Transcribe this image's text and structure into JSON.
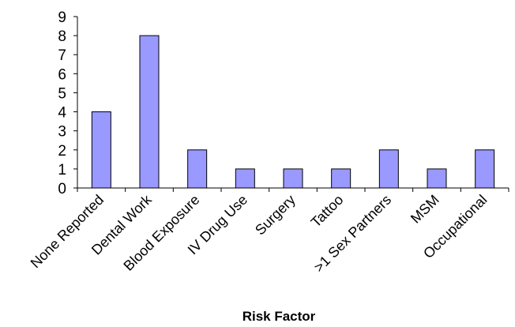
{
  "chart_data": {
    "type": "bar",
    "title": "",
    "xlabel": "Risk Factor",
    "ylabel": "",
    "categories": [
      "None Reported",
      "Dental Work",
      "Blood Exposure",
      "IV Drug Use",
      "Surgery",
      "Tattoo",
      ">1 Sex Partners",
      "MSM",
      "Occupational"
    ],
    "values": [
      4,
      8,
      2,
      1,
      1,
      1,
      2,
      1,
      2
    ],
    "ylim": [
      0,
      9
    ],
    "yticks": [
      0,
      1,
      2,
      3,
      4,
      5,
      6,
      7,
      8,
      9
    ],
    "grid": false,
    "legend": "none",
    "bar_color": "#9999ff",
    "bar_edge_color": "#000000"
  }
}
